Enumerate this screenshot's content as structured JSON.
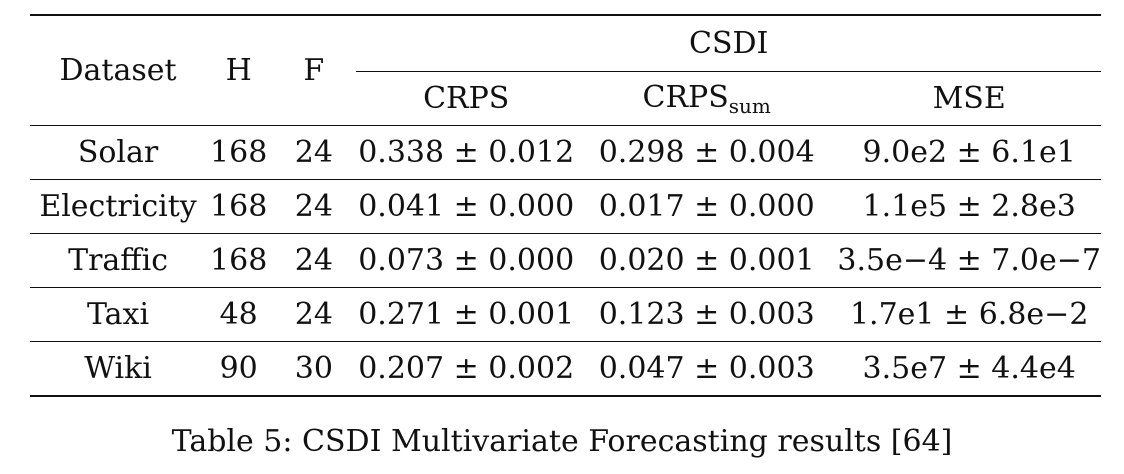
{
  "table": {
    "headers": {
      "dataset": "Dataset",
      "h": "H",
      "f": "F",
      "group": "CSDI",
      "crps": "CRPS",
      "crps_sum_base": "CRPS",
      "crps_sum_sub": "sum",
      "mse": "MSE"
    },
    "rows": [
      {
        "dataset": "Solar",
        "h": "168",
        "f": "24",
        "crps": "0.338 ± 0.012",
        "crps_sum": "0.298 ± 0.004",
        "mse": "9.0e2 ± 6.1e1"
      },
      {
        "dataset": "Electricity",
        "h": "168",
        "f": "24",
        "crps": "0.041 ± 0.000",
        "crps_sum": "0.017 ± 0.000",
        "mse": "1.1e5 ± 2.8e3"
      },
      {
        "dataset": "Traffic",
        "h": "168",
        "f": "24",
        "crps": "0.073 ± 0.000",
        "crps_sum": "0.020 ± 0.001",
        "mse": "3.5e−4 ± 7.0e−7"
      },
      {
        "dataset": "Taxi",
        "h": "48",
        "f": "24",
        "crps": "0.271 ± 0.001",
        "crps_sum": "0.123 ± 0.003",
        "mse": "1.7e1 ± 6.8e−2"
      },
      {
        "dataset": "Wiki",
        "h": "90",
        "f": "30",
        "crps": "0.207 ± 0.002",
        "crps_sum": "0.047 ± 0.003",
        "mse": "3.5e7 ± 4.4e4"
      }
    ]
  },
  "caption": "Table 5: CSDI Multivariate Forecasting results [64]"
}
